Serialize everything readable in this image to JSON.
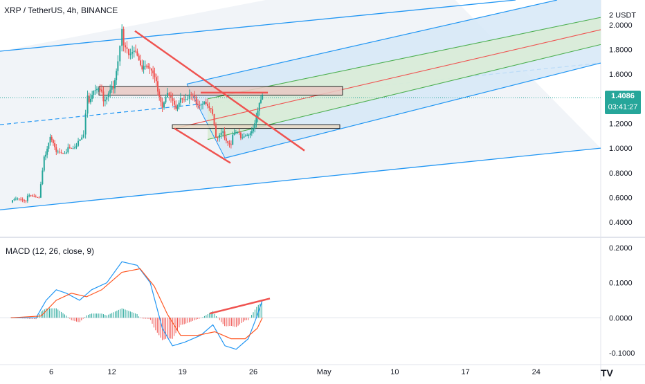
{
  "header": {
    "symbol_line": "XRP / TetherUS, 4h, BINANCE"
  },
  "price_tag": {
    "price": "1.4086",
    "countdown": "03:41:27"
  },
  "macd": {
    "label": "MACD (12, 26, close, 9)"
  },
  "colors": {
    "up": "#26a69a",
    "down": "#ef5350",
    "macd": "#2196f3",
    "signal": "#ff5722",
    "channel": "#2196f3",
    "median": "#ef5350",
    "inner": "#4caf50",
    "box_fill": "#e9c9c4"
  },
  "logo": "TV",
  "chart_data": [
    {
      "type": "candlestick",
      "title": "XRP / TetherUS, 4h, BINANCE",
      "y_unit": "USDT",
      "y_ticks": [
        "2 USDT",
        "2.0000",
        "1.8000",
        "1.6000",
        "1.4000",
        "1.2000",
        "1.0000",
        "0.8000",
        "0.6000",
        "0.4000"
      ],
      "ylim": [
        0.35,
        2.1
      ],
      "x_ticks": [
        "6",
        "12",
        "19",
        "26",
        "May",
        "10",
        "17",
        "24"
      ],
      "close_path": [
        {
          "day": 2.0,
          "price": 0.56
        },
        {
          "day": 3.5,
          "price": 0.59
        },
        {
          "day": 4.8,
          "price": 0.62
        },
        {
          "day": 5.3,
          "price": 0.92
        },
        {
          "day": 5.9,
          "price": 1.06
        },
        {
          "day": 6.5,
          "price": 0.95
        },
        {
          "day": 7.5,
          "price": 1.0
        },
        {
          "day": 8.5,
          "price": 1.05
        },
        {
          "day": 9.2,
          "price": 1.15
        },
        {
          "day": 9.6,
          "price": 1.4
        },
        {
          "day": 10.2,
          "price": 1.45
        },
        {
          "day": 11.0,
          "price": 1.42
        },
        {
          "day": 12.0,
          "price": 1.48
        },
        {
          "day": 12.6,
          "price": 1.7
        },
        {
          "day": 13.0,
          "price": 1.92
        },
        {
          "day": 13.5,
          "price": 1.8
        },
        {
          "day": 14.2,
          "price": 1.75
        },
        {
          "day": 15.0,
          "price": 1.68
        },
        {
          "day": 15.6,
          "price": 1.6
        },
        {
          "day": 16.4,
          "price": 1.55
        },
        {
          "day": 17.0,
          "price": 1.3
        },
        {
          "day": 17.5,
          "price": 1.4
        },
        {
          "day": 18.2,
          "price": 1.32
        },
        {
          "day": 18.8,
          "price": 1.45
        },
        {
          "day": 19.5,
          "price": 1.38
        },
        {
          "day": 20.2,
          "price": 1.42
        },
        {
          "day": 21.0,
          "price": 1.35
        },
        {
          "day": 21.8,
          "price": 1.36
        },
        {
          "day": 22.3,
          "price": 1.05
        },
        {
          "day": 23.0,
          "price": 1.1
        },
        {
          "day": 23.8,
          "price": 1.06
        },
        {
          "day": 24.6,
          "price": 1.12
        },
        {
          "day": 25.4,
          "price": 1.08
        },
        {
          "day": 26.0,
          "price": 1.2
        },
        {
          "day": 26.6,
          "price": 1.38
        },
        {
          "day": 26.9,
          "price": 1.41
        }
      ],
      "last_price": 1.4086
    },
    {
      "type": "line",
      "title": "MACD (12, 26, close, 9)",
      "y_ticks": [
        "0.2000",
        "0.1000",
        "0.0000",
        "-0.1000"
      ],
      "ylim": [
        -0.12,
        0.21
      ],
      "series": [
        {
          "name": "",
          "role": "macd",
          "points": [
            {
              "day": 2.0,
              "v": 0.0
            },
            {
              "day": 4.5,
              "v": 0.0
            },
            {
              "day": 5.5,
              "v": 0.05
            },
            {
              "day": 6.5,
              "v": 0.08
            },
            {
              "day": 7.5,
              "v": 0.07
            },
            {
              "day": 8.8,
              "v": 0.05
            },
            {
              "day": 10.0,
              "v": 0.08
            },
            {
              "day": 11.5,
              "v": 0.1
            },
            {
              "day": 13.0,
              "v": 0.16
            },
            {
              "day": 14.5,
              "v": 0.15
            },
            {
              "day": 15.8,
              "v": 0.1
            },
            {
              "day": 17.0,
              "v": -0.03
            },
            {
              "day": 18.0,
              "v": -0.08
            },
            {
              "day": 19.2,
              "v": -0.07
            },
            {
              "day": 20.8,
              "v": -0.05
            },
            {
              "day": 22.0,
              "v": -0.02
            },
            {
              "day": 23.2,
              "v": -0.08
            },
            {
              "day": 24.3,
              "v": -0.09
            },
            {
              "day": 25.5,
              "v": -0.06
            },
            {
              "day": 26.3,
              "v": 0.0
            },
            {
              "day": 26.9,
              "v": 0.05
            }
          ]
        },
        {
          "name": "",
          "role": "signal",
          "points": [
            {
              "day": 2.0,
              "v": 0.0
            },
            {
              "day": 5.0,
              "v": 0.005
            },
            {
              "day": 6.5,
              "v": 0.05
            },
            {
              "day": 8.0,
              "v": 0.07
            },
            {
              "day": 9.5,
              "v": 0.06
            },
            {
              "day": 11.0,
              "v": 0.08
            },
            {
              "day": 13.0,
              "v": 0.13
            },
            {
              "day": 14.8,
              "v": 0.14
            },
            {
              "day": 16.2,
              "v": 0.09
            },
            {
              "day": 17.5,
              "v": 0.01
            },
            {
              "day": 18.8,
              "v": -0.05
            },
            {
              "day": 20.5,
              "v": -0.05
            },
            {
              "day": 22.2,
              "v": -0.04
            },
            {
              "day": 23.8,
              "v": -0.06
            },
            {
              "day": 25.2,
              "v": -0.06
            },
            {
              "day": 26.4,
              "v": -0.03
            },
            {
              "day": 26.9,
              "v": 0.0
            }
          ]
        }
      ]
    }
  ]
}
